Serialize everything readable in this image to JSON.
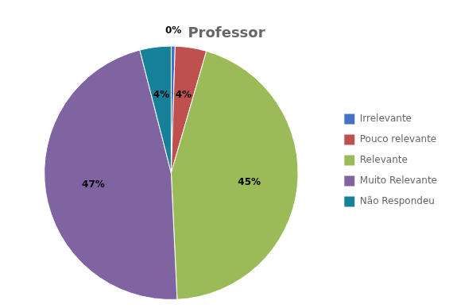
{
  "chart_data": {
    "type": "pie",
    "title": "Professor",
    "categories": [
      "Irrelevante",
      "Pouco relevante",
      "Relevante",
      "Muito Relevante",
      "Não Respondeu"
    ],
    "values": [
      0.5,
      4,
      45,
      47,
      4
    ],
    "value_labels": [
      "0%",
      "4%",
      "45%",
      "47%",
      "4%"
    ],
    "colors": [
      "#4472C4",
      "#C0504D",
      "#9BBB59",
      "#8064A2",
      "#17819C"
    ],
    "data_labels": true,
    "legend": "right"
  }
}
